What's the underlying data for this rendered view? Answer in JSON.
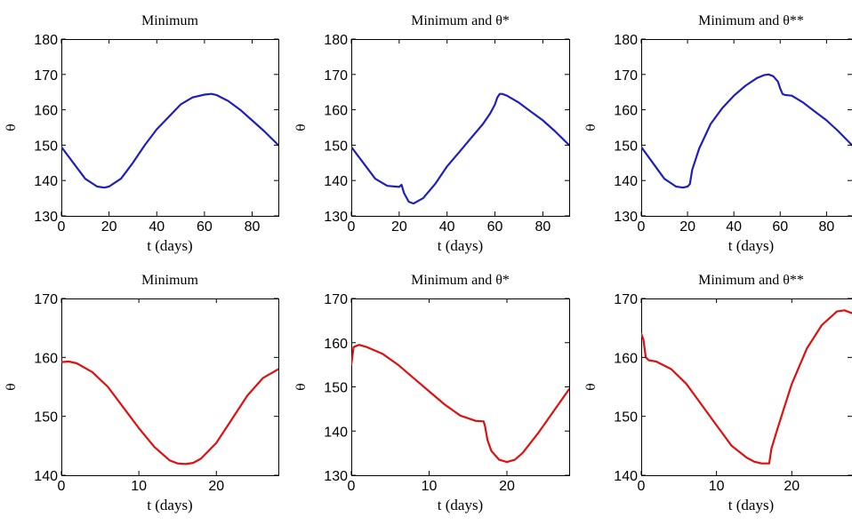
{
  "chart_data": [
    {
      "type": "line",
      "title": "Minimum",
      "xlabel": "t (days)",
      "ylabel": "θ",
      "xlim": [
        0,
        91
      ],
      "ylim": [
        130,
        180
      ],
      "xticks": [
        0,
        20,
        40,
        60,
        80
      ],
      "yticks": [
        130,
        140,
        150,
        160,
        170,
        180
      ],
      "grid": false,
      "color": "#1f1fbf",
      "x": [
        0,
        5,
        10,
        15,
        18,
        20,
        25,
        30,
        35,
        40,
        45,
        50,
        55,
        60,
        63,
        65,
        70,
        75,
        80,
        85,
        91
      ],
      "y": [
        149.5,
        145,
        140.5,
        138.3,
        138,
        138.3,
        140.5,
        145,
        150,
        154.5,
        158,
        161.5,
        163.5,
        164.3,
        164.5,
        164.2,
        162.5,
        160,
        157,
        154,
        150
      ]
    },
    {
      "type": "line",
      "title": "Minimum and θ*",
      "xlabel": "t (days)",
      "ylabel": "θ",
      "xlim": [
        0,
        91
      ],
      "ylim": [
        130,
        180
      ],
      "xticks": [
        0,
        20,
        40,
        60,
        80
      ],
      "yticks": [
        130,
        140,
        150,
        160,
        170,
        180
      ],
      "grid": false,
      "color": "#1f1fbf",
      "x": [
        0,
        5,
        10,
        15,
        20,
        21,
        22,
        24,
        26,
        30,
        35,
        40,
        45,
        50,
        55,
        58,
        60,
        61,
        62,
        63,
        65,
        70,
        75,
        80,
        85,
        91
      ],
      "y": [
        149.5,
        145,
        140.5,
        138.5,
        138.2,
        138.8,
        136.5,
        134,
        133.5,
        135,
        139,
        144,
        148,
        152,
        156,
        159,
        161.5,
        163.5,
        164.5,
        164.5,
        164,
        162,
        159.5,
        157,
        154,
        150
      ]
    },
    {
      "type": "line",
      "title": "Minimum and θ**",
      "xlabel": "t (days)",
      "ylabel": "θ",
      "xlim": [
        0,
        91
      ],
      "ylim": [
        130,
        180
      ],
      "xticks": [
        0,
        20,
        40,
        60,
        80
      ],
      "yticks": [
        130,
        140,
        150,
        160,
        170,
        180
      ],
      "grid": false,
      "color": "#1f1fbf",
      "x": [
        0,
        5,
        10,
        15,
        18,
        20,
        21,
        22,
        25,
        30,
        35,
        40,
        45,
        50,
        53,
        55,
        57,
        59,
        60,
        61,
        62,
        65,
        70,
        75,
        80,
        85,
        91
      ],
      "y": [
        149.5,
        145,
        140.5,
        138.3,
        138,
        138.3,
        139,
        143,
        149,
        156,
        160.5,
        164,
        166.8,
        169,
        169.8,
        170,
        169.5,
        168,
        166,
        164.5,
        164.2,
        164,
        162,
        159.5,
        157,
        154,
        150
      ]
    },
    {
      "type": "line",
      "title": "Minimum",
      "xlabel": "t (days)",
      "ylabel": "θ",
      "xlim": [
        0,
        28
      ],
      "ylim": [
        140,
        170
      ],
      "xticks": [
        0,
        10,
        20
      ],
      "yticks": [
        140,
        150,
        160,
        170
      ],
      "grid": false,
      "color": "#e01010",
      "x": [
        0,
        1,
        2,
        4,
        6,
        8,
        10,
        12,
        14,
        15,
        16,
        17,
        18,
        20,
        22,
        24,
        26,
        28
      ],
      "y": [
        159.2,
        159.3,
        159,
        157.5,
        155,
        151.5,
        148,
        144.8,
        142.5,
        142,
        141.9,
        142.1,
        142.8,
        145.5,
        149.5,
        153.5,
        156.5,
        158
      ]
    },
    {
      "type": "line",
      "title": "Minimum and θ*",
      "xlabel": "t (days)",
      "ylabel": "θ",
      "xlim": [
        0,
        28
      ],
      "ylim": [
        130,
        170
      ],
      "xticks": [
        0,
        10,
        20
      ],
      "yticks": [
        130,
        140,
        150,
        160,
        170
      ],
      "grid": false,
      "color": "#e01010",
      "x": [
        0,
        0.3,
        1,
        2,
        4,
        6,
        8,
        10,
        12,
        14,
        16,
        17,
        17.2,
        17.5,
        18,
        19,
        20,
        21,
        22,
        24,
        26,
        28
      ],
      "y": [
        155,
        159,
        159.5,
        159,
        157.5,
        155,
        152,
        149,
        146,
        143.5,
        142.3,
        142.2,
        141,
        138,
        135.5,
        133.5,
        133,
        133.5,
        135,
        139.5,
        144.5,
        149.5
      ]
    },
    {
      "type": "line",
      "title": "Minimum and θ**",
      "xlabel": "t (days)",
      "ylabel": "θ",
      "xlim": [
        0,
        28
      ],
      "ylim": [
        140,
        170
      ],
      "xticks": [
        0,
        10,
        20
      ],
      "yticks": [
        140,
        150,
        160,
        170
      ],
      "grid": false,
      "color": "#e01010",
      "x": [
        0,
        0.3,
        0.6,
        1,
        2,
        4,
        6,
        8,
        10,
        12,
        14,
        15,
        16,
        17,
        17.3,
        18,
        19,
        20,
        22,
        24,
        26,
        27,
        28
      ],
      "y": [
        164,
        163,
        160,
        159.5,
        159.3,
        158,
        155.5,
        152,
        148.5,
        145,
        143,
        142.3,
        142,
        142,
        144.5,
        147.5,
        151.5,
        155.5,
        161.5,
        165.5,
        167.8,
        168,
        167.5
      ]
    }
  ]
}
